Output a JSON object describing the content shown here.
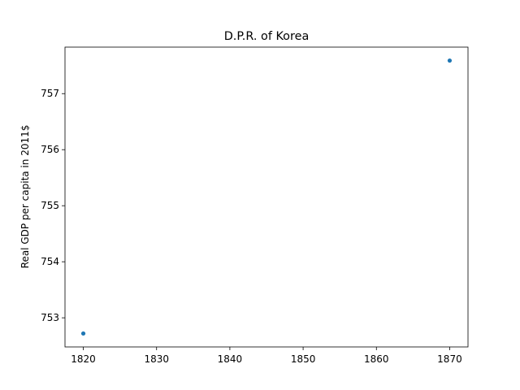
{
  "chart_data": {
    "type": "scatter",
    "title": "D.P.R. of Korea",
    "xlabel": "",
    "ylabel": "Real GDP per capita in 2011$",
    "x": [
      1820,
      1870
    ],
    "y": [
      752.72,
      757.59
    ],
    "xlim": [
      1817.5,
      1872.5
    ],
    "ylim": [
      752.48,
      757.83
    ],
    "xticks": [
      1820,
      1830,
      1840,
      1850,
      1860,
      1870
    ],
    "yticks": [
      753,
      754,
      755,
      756,
      757
    ],
    "grid": false,
    "legend": "none",
    "marker_color": "#1f77b4"
  }
}
